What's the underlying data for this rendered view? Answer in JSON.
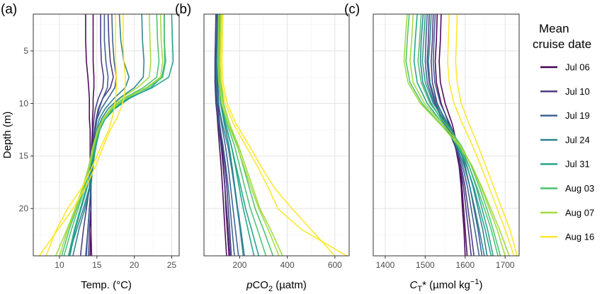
{
  "legend": {
    "title_line1": "Mean",
    "title_line2": "cruise date",
    "entries": [
      {
        "label": "Jul 06",
        "color": "#440154"
      },
      {
        "label": "Jul 10",
        "color": "#46337E"
      },
      {
        "label": "Jul 19",
        "color": "#365C8D"
      },
      {
        "label": "Jul 24",
        "color": "#277F8E"
      },
      {
        "label": "Jul 31",
        "color": "#1FA187"
      },
      {
        "label": "Aug 03",
        "color": "#4AC16D"
      },
      {
        "label": "Aug 07",
        "color": "#9FDA3A"
      },
      {
        "label": "Aug 16",
        "color": "#FDE725"
      }
    ]
  },
  "shared_y_axis": {
    "label": "Depth (m)",
    "ticks": [
      5,
      10,
      15,
      20
    ],
    "ylim": [
      24.5,
      1.5
    ],
    "reversed": true
  },
  "chart_data": [
    {
      "type": "line",
      "panel_label": "(a)",
      "xlabel_parts": [
        {
          "text": "Temp. (°C)"
        }
      ],
      "xlim": [
        6.5,
        26
      ],
      "x_ticks": [
        10,
        15,
        20,
        25
      ],
      "depths": [
        1.5,
        4,
        6,
        7.5,
        8.5,
        9.5,
        10.5,
        11.5,
        12.5,
        14,
        16,
        18,
        20,
        22,
        24.5
      ],
      "series": [
        {
          "name": "Jul 06",
          "profiles": [
            [
              13.5,
              13.5,
              13.6,
              13.8,
              13.9,
              14.0,
              14.0,
              14.0,
              14.1,
              14.1,
              14.1,
              14.2,
              14.2,
              14.2,
              14.3
            ],
            [
              14.5,
              14.5,
              14.5,
              14.6,
              14.6,
              14.5,
              14.5,
              14.4,
              14.4,
              14.3,
              14.3,
              14.2,
              14.2,
              14.2,
              14.1
            ]
          ]
        },
        {
          "name": "Jul 10",
          "profiles": [
            [
              15.5,
              15.5,
              15.6,
              15.9,
              15.8,
              15.2,
              14.8,
              14.6,
              14.5,
              14.4,
              14.3,
              14.2,
              14.2,
              14.0,
              13.9
            ],
            [
              16.5,
              16.6,
              16.8,
              17.2,
              16.8,
              15.8,
              15.2,
              14.9,
              14.7,
              14.5,
              14.3,
              14.0,
              13.6,
              13.2,
              12.8
            ]
          ]
        },
        {
          "name": "Jul 19",
          "profiles": [
            [
              17.0,
              17.1,
              17.3,
              17.6,
              17.4,
              16.5,
              15.6,
              15.0,
              14.8,
              14.6,
              14.4,
              14.2,
              14.0,
              13.8,
              13.5
            ],
            [
              16.0,
              16.0,
              16.2,
              16.5,
              16.4,
              15.8,
              15.3,
              15.0,
              14.8,
              14.6,
              14.4,
              14.2,
              14.0,
              13.8,
              13.6
            ]
          ]
        },
        {
          "name": "Jul 24",
          "profiles": [
            [
              18.0,
              18.2,
              18.6,
              19.3,
              18.8,
              17.3,
              16.1,
              15.3,
              15.0,
              14.7,
              14.4,
              14.0,
              13.2,
              12.3,
              11.2
            ],
            [
              21.0,
              21.1,
              21.3,
              21.2,
              20.0,
              18.0,
              16.5,
              15.6,
              15.1,
              14.8,
              14.5,
              14.1,
              13.4,
              12.6,
              11.8
            ]
          ]
        },
        {
          "name": "Jul 31",
          "profiles": [
            [
              24.0,
              24.0,
              24.1,
              23.7,
              22.2,
              19.4,
              17.4,
              16.1,
              15.4,
              14.9,
              14.4,
              13.7,
              12.9,
              12.1,
              11.4
            ],
            [
              25.0,
              25.1,
              25.2,
              24.6,
              22.4,
              19.2,
              17.2,
              16.0,
              15.3,
              14.8,
              14.3,
              13.6,
              12.8,
              12.0,
              11.2
            ]
          ]
        },
        {
          "name": "Aug 03",
          "profiles": [
            [
              23.0,
              23.1,
              23.3,
              23.0,
              21.2,
              18.6,
              16.9,
              15.9,
              15.2,
              14.6,
              14.0,
              13.3,
              12.3,
              11.3,
              10.3
            ],
            [
              24.0,
              24.0,
              24.2,
              23.8,
              21.8,
              18.9,
              17.1,
              16.0,
              15.3,
              14.7,
              14.1,
              13.4,
              12.5,
              11.6,
              10.6
            ]
          ]
        },
        {
          "name": "Aug 07",
          "profiles": [
            [
              22.0,
              22.1,
              22.2,
              22.0,
              20.4,
              18.2,
              16.8,
              15.8,
              15.1,
              14.5,
              13.9,
              13.1,
              12.1,
              11.0,
              9.5
            ],
            [
              23.5,
              23.6,
              23.8,
              23.5,
              21.6,
              18.8,
              17.0,
              15.9,
              15.2,
              14.6,
              14.0,
              13.2,
              12.2,
              11.1,
              10.0
            ]
          ]
        },
        {
          "name": "Aug 16",
          "profiles": [
            [
              18.5,
              18.5,
              18.6,
              18.8,
              18.8,
              18.6,
              18.2,
              17.6,
              16.8,
              15.9,
              14.8,
              13.5,
              11.8,
              9.8,
              7.3
            ],
            [
              17.5,
              17.5,
              17.5,
              17.6,
              17.6,
              17.5,
              17.3,
              17.0,
              16.6,
              15.6,
              14.4,
              13.0,
              11.1,
              9.6,
              8.2
            ]
          ]
        }
      ]
    },
    {
      "type": "line",
      "panel_label": "(b)",
      "xlabel_parts": [
        {
          "text": "p",
          "style": "italic"
        },
        {
          "text": "CO"
        },
        {
          "text": "2",
          "shift": "sub"
        },
        {
          "text": " (µatm)"
        }
      ],
      "xlim": [
        50,
        660
      ],
      "x_ticks": [
        200,
        400,
        600
      ],
      "depths": [
        1.5,
        4,
        6,
        8,
        10,
        12,
        14,
        16,
        18,
        20,
        22,
        24.5
      ],
      "series": [
        {
          "name": "Jul 06",
          "profiles": [
            [
              115,
              112,
              110,
              108,
              110,
              115,
              125,
              132,
              138,
              142,
              148,
              155
            ],
            [
              105,
              103,
              100,
              100,
              102,
              108,
              115,
              122,
              128,
              133,
              138,
              145
            ]
          ]
        },
        {
          "name": "Jul 10",
          "profiles": [
            [
              110,
              108,
              106,
              105,
              108,
              116,
              128,
              138,
              146,
              152,
              158,
              165
            ],
            [
              100,
              98,
              96,
              96,
              100,
              110,
              122,
              130,
              138,
              145,
              152,
              160
            ]
          ]
        },
        {
          "name": "Jul 19",
          "profiles": [
            [
              105,
              103,
              100,
              100,
              104,
              115,
              130,
              142,
              152,
              160,
              168,
              178
            ],
            [
              112,
              110,
              108,
              108,
              112,
              124,
              140,
              152,
              162,
              172,
              182,
              195
            ]
          ]
        },
        {
          "name": "Jul 24",
          "profiles": [
            [
              118,
              116,
              114,
              114,
              120,
              136,
              155,
              168,
              180,
              192,
              205,
              220
            ],
            [
              108,
              106,
              104,
              104,
              110,
              128,
              150,
              165,
              178,
              190,
              202,
              215
            ]
          ]
        },
        {
          "name": "Jul 31",
          "profiles": [
            [
              122,
              118,
              115,
              115,
              122,
              142,
              165,
              182,
              198,
              215,
              235,
              260
            ],
            [
              115,
              112,
              110,
              112,
              120,
              140,
              165,
              185,
              205,
              225,
              250,
              280
            ]
          ]
        },
        {
          "name": "Aug 03",
          "profiles": [
            [
              118,
              115,
              112,
              114,
              124,
              148,
              178,
              200,
              222,
              245,
              275,
              310
            ],
            [
              125,
              122,
              120,
              122,
              132,
              158,
              190,
              215,
              240,
              265,
              300,
              340
            ]
          ]
        },
        {
          "name": "Aug 07",
          "profiles": [
            [
              120,
              117,
              115,
              118,
              130,
              158,
              195,
              225,
              255,
              285,
              330,
              380
            ],
            [
              112,
              110,
              108,
              112,
              124,
              152,
              188,
              218,
              248,
              280,
              320,
              365
            ]
          ]
        },
        {
          "name": "Aug 16",
          "profiles": [
            [
              125,
              122,
              120,
              124,
              140,
              175,
              225,
              275,
              320,
              360,
              460,
              650
            ],
            [
              130,
              128,
              126,
              130,
              148,
              186,
              240,
              290,
              345,
              420,
              500,
              600
            ]
          ]
        }
      ]
    },
    {
      "type": "line",
      "panel_label": "(c)",
      "xlabel_parts": [
        {
          "text": "C",
          "style": "italic"
        },
        {
          "text": "T",
          "shift": "sub"
        },
        {
          "text": "* (µmol kg"
        },
        {
          "text": "−1",
          "shift": "super"
        },
        {
          "text": ")"
        }
      ],
      "xlim": [
        1370,
        1735
      ],
      "x_ticks": [
        1400,
        1500,
        1600,
        1700
      ],
      "depths": [
        1.5,
        4,
        6,
        8,
        10,
        12,
        14,
        16,
        18,
        20,
        22,
        24.5
      ],
      "series": [
        {
          "name": "Jul 06",
          "profiles": [
            [
              1530,
              1528,
              1525,
              1528,
              1540,
              1560,
              1575,
              1585,
              1590,
              1593,
              1597,
              1600
            ],
            [
              1540,
              1538,
              1535,
              1538,
              1550,
              1568,
              1580,
              1588,
              1592,
              1596,
              1600,
              1605
            ]
          ]
        },
        {
          "name": "Jul 10",
          "profiles": [
            [
              1520,
              1518,
              1515,
              1518,
              1530,
              1555,
              1575,
              1588,
              1596,
              1602,
              1608,
              1615
            ],
            [
              1510,
              1508,
              1505,
              1510,
              1525,
              1552,
              1574,
              1590,
              1600,
              1607,
              1614,
              1622
            ]
          ]
        },
        {
          "name": "Jul 19",
          "profiles": [
            [
              1505,
              1502,
              1500,
              1505,
              1522,
              1550,
              1576,
              1594,
              1606,
              1615,
              1624,
              1635
            ],
            [
              1525,
              1522,
              1520,
              1524,
              1538,
              1562,
              1584,
              1600,
              1612,
              1622,
              1632,
              1642
            ]
          ]
        },
        {
          "name": "Jul 24",
          "profiles": [
            [
              1495,
              1490,
              1488,
              1494,
              1515,
              1548,
              1578,
              1598,
              1612,
              1624,
              1635,
              1648
            ],
            [
              1515,
              1512,
              1508,
              1512,
              1528,
              1558,
              1585,
              1605,
              1620,
              1632,
              1644,
              1655
            ]
          ]
        },
        {
          "name": "Jul 31",
          "profiles": [
            [
              1480,
              1475,
              1472,
              1480,
              1505,
              1545,
              1580,
              1604,
              1622,
              1636,
              1650,
              1665
            ],
            [
              1500,
              1496,
              1493,
              1500,
              1520,
              1556,
              1588,
              1610,
              1628,
              1642,
              1656,
              1670
            ]
          ]
        },
        {
          "name": "Aug 03",
          "profiles": [
            [
              1460,
              1455,
              1452,
              1462,
              1492,
              1540,
              1582,
              1610,
              1630,
              1648,
              1665,
              1682
            ],
            [
              1490,
              1486,
              1482,
              1490,
              1512,
              1552,
              1590,
              1616,
              1636,
              1654,
              1670,
              1688
            ]
          ]
        },
        {
          "name": "Aug 07",
          "profiles": [
            [
              1470,
              1466,
              1462,
              1470,
              1498,
              1545,
              1588,
              1618,
              1640,
              1660,
              1680,
              1700
            ],
            [
              1455,
              1450,
              1447,
              1457,
              1488,
              1538,
              1585,
              1618,
              1642,
              1664,
              1686,
              1710
            ]
          ]
        },
        {
          "name": "Aug 16",
          "profiles": [
            [
              1560,
              1558,
              1556,
              1560,
              1572,
              1594,
              1618,
              1640,
              1660,
              1680,
              1700,
              1722
            ],
            [
              1580,
              1578,
              1576,
              1580,
              1590,
              1610,
              1632,
              1652,
              1672,
              1692,
              1712,
              1730
            ]
          ]
        }
      ]
    }
  ]
}
